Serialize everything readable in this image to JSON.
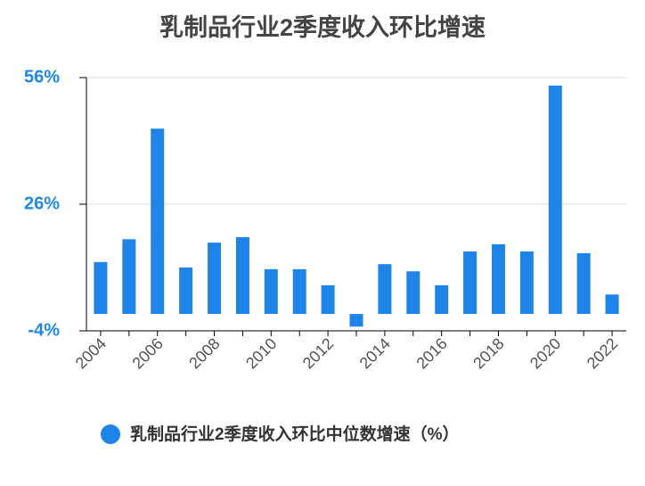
{
  "chart_data": {
    "type": "bar",
    "title": "乳制品行业2季度收入环比增速",
    "categories": [
      "2004",
      null,
      "2006",
      null,
      "2008",
      null,
      "2010",
      null,
      "2012",
      null,
      "2014",
      null,
      "2016",
      null,
      "2018",
      null,
      "2020",
      null,
      "2022"
    ],
    "series": [
      {
        "name": "乳制品行业2季度收入环比中位数增速（%）",
        "color": "#1e84e8",
        "values": [
          12.3,
          17.7,
          43.9,
          11.0,
          16.9,
          18.2,
          10.6,
          10.6,
          6.8,
          -3.0,
          11.8,
          10.1,
          6.8,
          14.8,
          16.5,
          14.8,
          54.1,
          14.4,
          4.6
        ]
      }
    ],
    "ylim": [
      -4,
      56
    ],
    "yticks": [
      {
        "value": -4,
        "label": "-4%"
      },
      {
        "value": 26,
        "label": "26%"
      },
      {
        "value": 56,
        "label": "56%"
      }
    ],
    "grid": true
  }
}
